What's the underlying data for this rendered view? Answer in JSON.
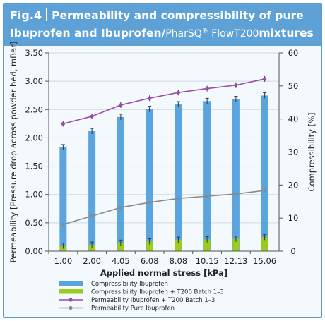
{
  "header": {
    "fig_label": "Fig.4",
    "title_line1": "Permeability and compressibility of pure",
    "title_line2_a": "Ibuprofen and Ibuprofen/",
    "title_line2_brand": "PharSQ",
    "title_line2_reg": "®",
    "title_line2_b": " FlowT200",
    "title_line2_c": "mixtures"
  },
  "colors": {
    "header_bg": "#5ea1d6",
    "blue_bar": "#5aa5df",
    "green_bar": "#9bcc1b",
    "purple_line": "#9a4aa8",
    "gray_line": "#8a8a8a"
  },
  "chart_data": {
    "type": "bar",
    "categories": [
      "1.00",
      "2.00",
      "4.05",
      "6.08",
      "8.08",
      "10.15",
      "12.13",
      "15.06"
    ],
    "xlabel": "Applied normal stress [kPa]",
    "ylabel": "Permeability [Pressure drop across powder bed, mBar]",
    "y2label": "Compressibility [%]",
    "ylim": [
      0,
      3.5
    ],
    "y2lim": [
      0,
      60
    ],
    "yticks": [
      "0.00",
      "0.50",
      "1.00",
      "1.50",
      "2.00",
      "2.50",
      "3.00",
      "3.50"
    ],
    "y2ticks": [
      "0",
      "10",
      "20",
      "30",
      "40",
      "50",
      "60"
    ],
    "legend_position": "bottom",
    "series": [
      {
        "name": "Compressibility Ibuprofen",
        "kind": "bar",
        "axis": "right",
        "values": [
          31.4,
          36.3,
          40.6,
          43.0,
          44.4,
          45.4,
          46.0,
          47.1
        ]
      },
      {
        "name": "Compressibility Ibuprofen + T200 Batch 1–3",
        "kind": "bar",
        "axis": "right",
        "values": [
          1.6,
          1.9,
          2.5,
          2.9,
          3.4,
          3.5,
          3.7,
          4.2
        ]
      },
      {
        "name": "Permeability Ibuprofen + T200 Batch 1–3",
        "kind": "line",
        "axis": "left",
        "values": [
          2.25,
          2.38,
          2.58,
          2.7,
          2.8,
          2.87,
          2.93,
          3.04
        ]
      },
      {
        "name": "Permeability Pure Ibuprofen",
        "kind": "line",
        "axis": "left",
        "values": [
          0.47,
          0.62,
          0.77,
          0.86,
          0.93,
          0.97,
          1.01,
          1.07
        ]
      }
    ]
  }
}
